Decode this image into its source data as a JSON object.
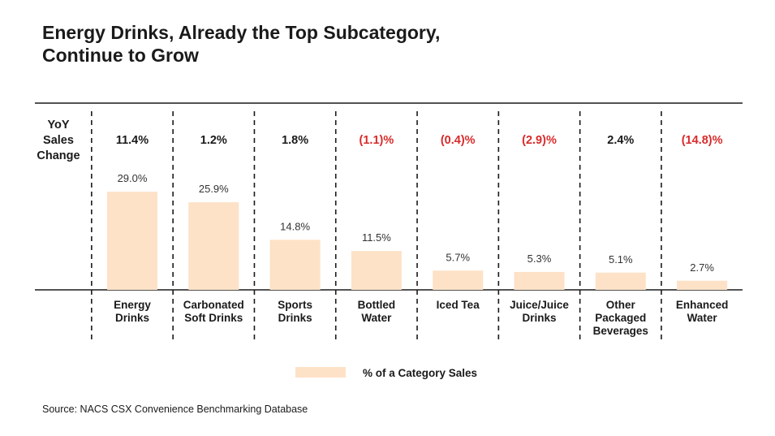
{
  "title_lines": [
    "Energy Drinks, Already the Top Subcategory,",
    "Continue to Grow"
  ],
  "source": "Source: NACS CSX Convenience Benchmarking Database",
  "colors": {
    "bar": "#fde2c8",
    "negative": "#d92a2a",
    "positive": "#1a1a1a",
    "rule": "#1a1a1a"
  },
  "chart_data": {
    "type": "bar",
    "categories": [
      [
        "Energy",
        "Drinks"
      ],
      [
        "Carbonated",
        "Soft Drinks"
      ],
      [
        "Sports",
        "Drinks"
      ],
      [
        "Bottled",
        "Water"
      ],
      [
        "Iced Tea"
      ],
      [
        "Juice/Juice",
        "Drinks"
      ],
      [
        "Other",
        "Packaged",
        "Beverages"
      ],
      [
        "Enhanced",
        "Water"
      ]
    ],
    "series": [
      {
        "name": "% of a Category Sales",
        "values": [
          29.0,
          25.9,
          14.8,
          11.5,
          5.7,
          5.3,
          5.1,
          2.7
        ]
      }
    ],
    "value_labels": [
      "29.0%",
      "25.9%",
      "14.8%",
      "11.5%",
      "5.7%",
      "5.3%",
      "5.1%",
      "2.7%"
    ],
    "yoy_header": [
      "YoY",
      "Sales",
      "Change"
    ],
    "yoy_change": [
      11.4,
      1.2,
      1.8,
      -1.1,
      -0.4,
      -2.9,
      2.4,
      -14.8
    ],
    "yoy_labels": [
      "11.4%",
      "1.2%",
      "1.8%",
      "(1.1)%",
      "(0.4)%",
      "(2.9)%",
      "2.4%",
      "(14.8)%"
    ],
    "ylim": [
      0,
      30
    ],
    "legend_position": "bottom-center",
    "grid": false
  }
}
